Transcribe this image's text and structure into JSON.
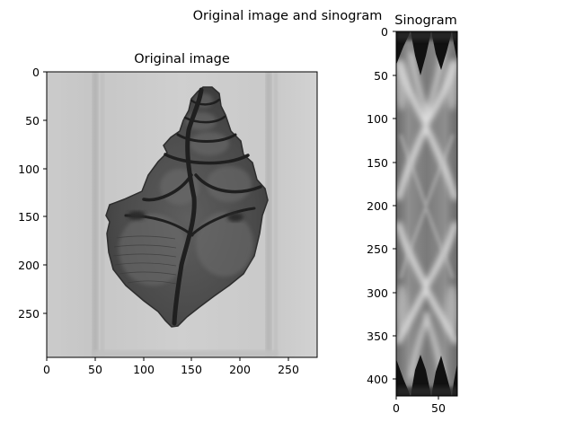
{
  "figure": {
    "suptitle": "Original image and sinogram"
  },
  "chart_data": [
    {
      "type": "heatmap",
      "title": "Original image",
      "colormap": "gray",
      "xlim": [
        0,
        280
      ],
      "ylim": [
        295,
        0
      ],
      "x_ticks": [
        0,
        50,
        100,
        150,
        200,
        250
      ],
      "y_ticks": [
        0,
        50,
        100,
        150,
        200,
        250
      ],
      "xlabel": "",
      "ylabel": "",
      "grid": false,
      "content": "grayscale X-ray of a spiral seashell on a light gray background between two vertical stripes"
    },
    {
      "type": "heatmap",
      "title": "Sinogram",
      "colormap": "gray",
      "xlim": [
        0,
        72
      ],
      "ylim": [
        420,
        0
      ],
      "x_ticks": [
        0,
        50
      ],
      "y_ticks": [
        0,
        50,
        100,
        150,
        200,
        250,
        300,
        350,
        400
      ],
      "xlabel": "",
      "ylabel": "",
      "grid": false,
      "content": "sinogram with dark triangular regions at top and bottom and bright curved sinusoidal bands"
    }
  ]
}
